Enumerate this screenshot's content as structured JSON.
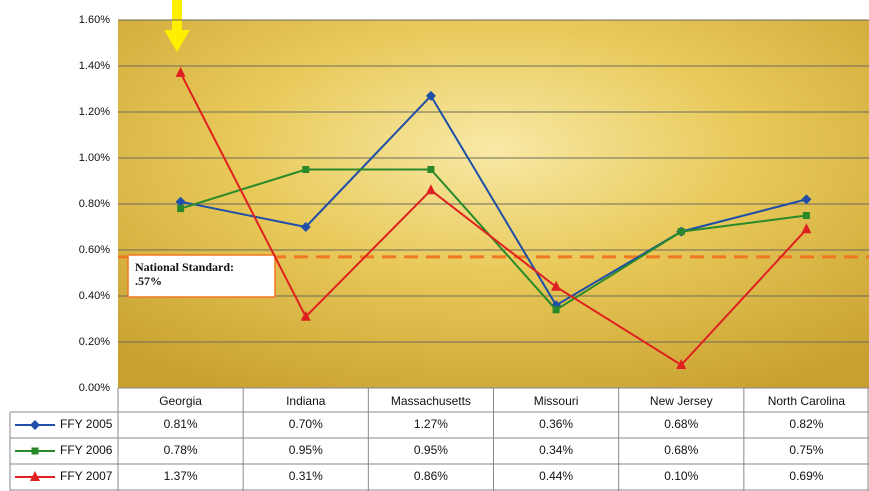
{
  "chart_data": {
    "type": "line",
    "categories": [
      "Georgia",
      "Indiana",
      "Massachusetts",
      "Missouri",
      "New Jersey",
      "North Carolina"
    ],
    "series": [
      {
        "name": "FFY 2005",
        "color": "#1f4fa8",
        "marker": "diamond",
        "values": [
          0.81,
          0.7,
          1.27,
          0.36,
          0.68,
          0.82
        ],
        "value_labels": [
          "0.81%",
          "0.70%",
          "1.27%",
          "0.36%",
          "0.68%",
          "0.82%"
        ]
      },
      {
        "name": "FFY 2006",
        "color": "#2a8a2a",
        "marker": "square",
        "values": [
          0.78,
          0.95,
          0.95,
          0.34,
          0.68,
          0.75
        ],
        "value_labels": [
          "0.78%",
          "0.95%",
          "0.95%",
          "0.34%",
          "0.68%",
          "0.75%"
        ]
      },
      {
        "name": "FFY 2007",
        "color": "#e02020",
        "marker": "triangle",
        "values": [
          1.37,
          0.31,
          0.86,
          0.44,
          0.1,
          0.69
        ],
        "value_labels": [
          "1.37%",
          "0.31%",
          "0.86%",
          "0.44%",
          "0.10%",
          "0.69%"
        ]
      }
    ],
    "ylim": [
      0,
      1.6
    ],
    "yticks": [
      {
        "value": 0,
        "label": "0.00%"
      },
      {
        "value": 0.2,
        "label": "0.20%"
      },
      {
        "value": 0.4,
        "label": "0.40%"
      },
      {
        "value": 0.6,
        "label": "0.60%"
      },
      {
        "value": 0.8,
        "label": "0.80%"
      },
      {
        "value": 1.0,
        "label": "1.00%"
      },
      {
        "value": 1.2,
        "label": "1.20%"
      },
      {
        "value": 1.4,
        "label": "1.40%"
      },
      {
        "value": 1.6,
        "label": "1.60%"
      }
    ],
    "grid": true,
    "reference_line": {
      "value": 0.57,
      "color": "#f07820",
      "label_lines": [
        "National Standard:",
        ".57%"
      ]
    }
  }
}
